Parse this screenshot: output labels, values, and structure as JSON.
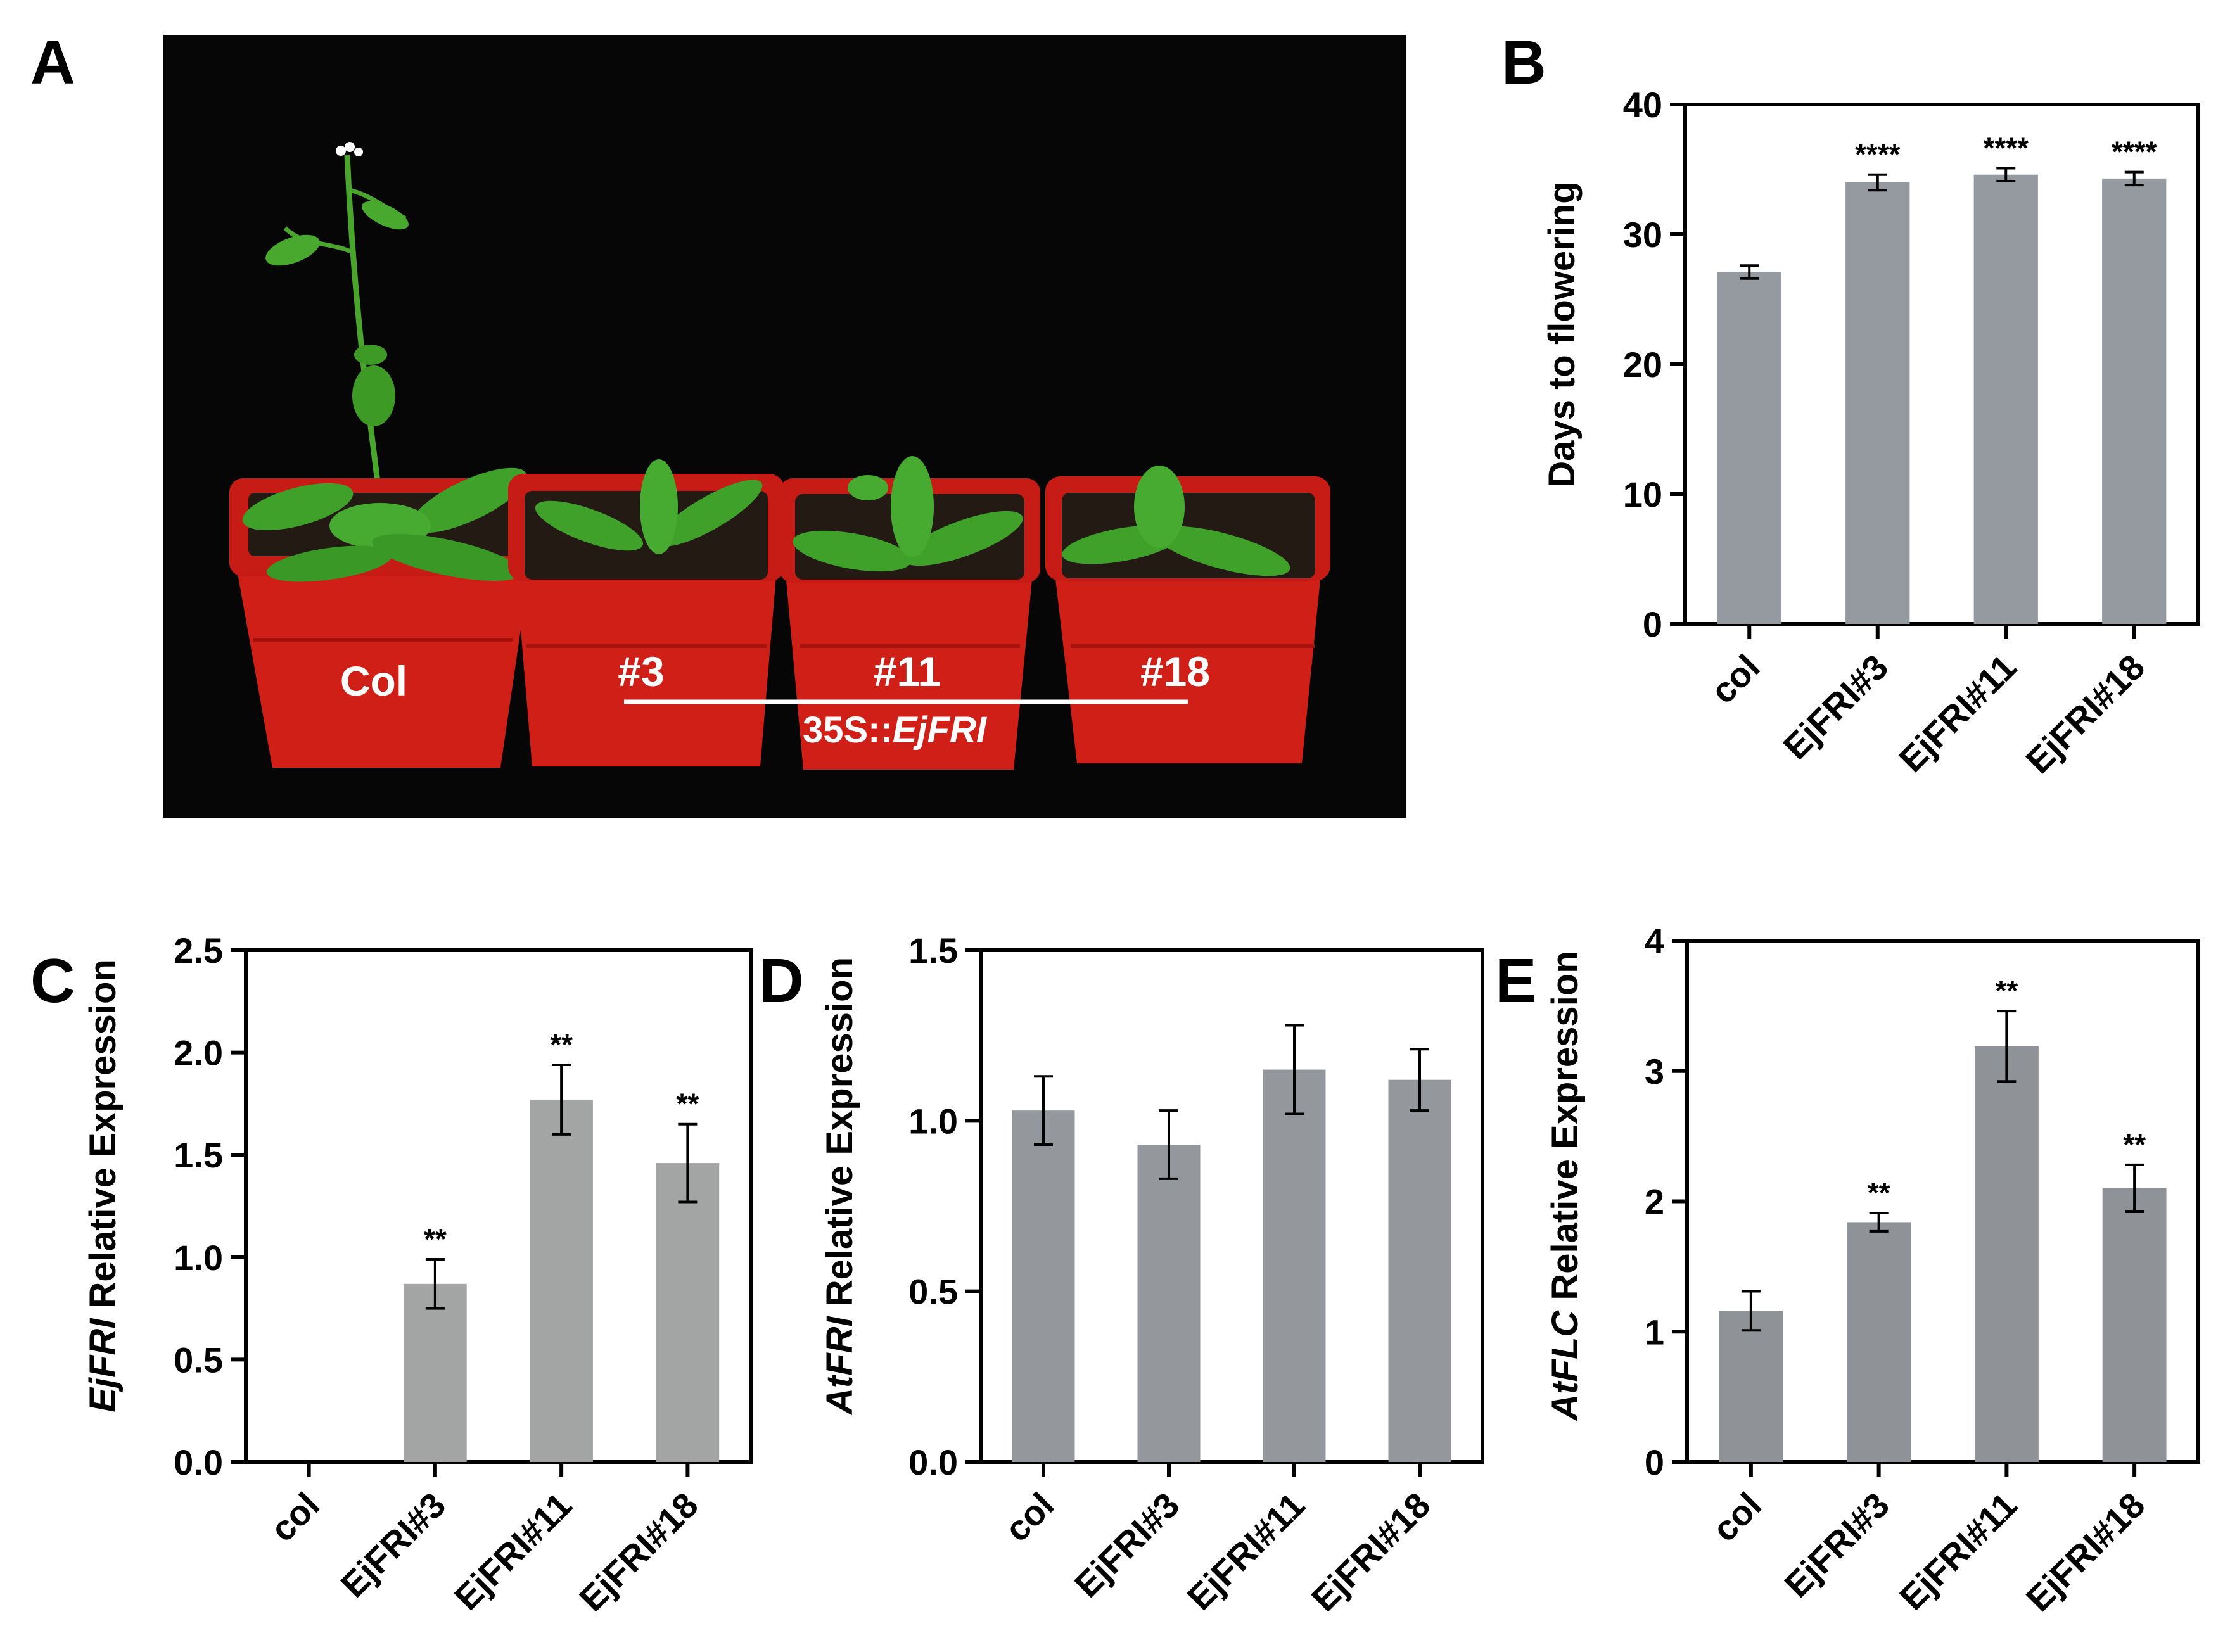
{
  "panel_a": {
    "letter": "A",
    "pot_labels": [
      "Col",
      "#3",
      "#11",
      "#18"
    ],
    "construct_prefix": "35S::",
    "construct_gene": "EjFRI"
  },
  "chart_data": [
    {
      "panel": "B",
      "type": "bar",
      "categories": [
        "col",
        "EjFRI#3",
        "EjFRI#11",
        "EjFRI#18"
      ],
      "values": [
        27.1,
        34.0,
        34.6,
        34.3
      ],
      "errors": [
        0.5,
        0.6,
        0.5,
        0.5
      ],
      "significance": [
        "",
        "****",
        "****",
        "****"
      ],
      "ylabel": "Days to flowering",
      "ylim": [
        0,
        40
      ],
      "yticks": [
        "0",
        "10",
        "20",
        "30",
        "40"
      ],
      "bar_color": "#959aa0"
    },
    {
      "panel": "C",
      "type": "bar",
      "categories": [
        "col",
        "EjFRI#3",
        "EjFRI#11",
        "EjFRI#18"
      ],
      "values": [
        0.0,
        0.87,
        1.77,
        1.46
      ],
      "errors": [
        0.0,
        0.12,
        0.17,
        0.19
      ],
      "significance": [
        "",
        "**",
        "**",
        "**"
      ],
      "ylabel_gene": "EjFRI",
      "ylabel_rest": " Relative Expression",
      "ylim": [
        0,
        2.5
      ],
      "yticks": [
        "0.0",
        "0.5",
        "1.0",
        "1.5",
        "2.0",
        "2.5"
      ],
      "bar_color": "#a2a5a4"
    },
    {
      "panel": "D",
      "type": "bar",
      "categories": [
        "col",
        "EjFRI#3",
        "EjFRI#11",
        "EjFRI#18"
      ],
      "values": [
        1.03,
        0.93,
        1.15,
        1.12
      ],
      "errors": [
        0.1,
        0.1,
        0.13,
        0.09
      ],
      "significance": [
        "",
        "",
        "",
        ""
      ],
      "ylabel_gene": "AtFRI",
      "ylabel_rest": " Relative Expression",
      "ylim": [
        0,
        1.5
      ],
      "yticks": [
        "0.0",
        "0.5",
        "1.0",
        "1.5"
      ],
      "bar_color": "#94979c"
    },
    {
      "panel": "E",
      "type": "bar",
      "categories": [
        "col",
        "EjFRI#3",
        "EjFRI#11",
        "EjFRI#18"
      ],
      "values": [
        1.16,
        1.84,
        3.19,
        2.1
      ],
      "errors": [
        0.15,
        0.07,
        0.27,
        0.18
      ],
      "significance": [
        "",
        "**",
        "**",
        "**"
      ],
      "ylabel_gene": "AtFLC",
      "ylabel_rest": " Relative Expression",
      "ylim": [
        0,
        4
      ],
      "yticks": [
        "0",
        "1",
        "2",
        "3",
        "4"
      ],
      "bar_color": "#8f9296"
    }
  ],
  "colors": {
    "photo_background": "#060606",
    "pot_red": "#d01f17",
    "pot_red_dark": "#a5130e",
    "leaf_green": "#3fa12a",
    "soil": "#231b13"
  }
}
